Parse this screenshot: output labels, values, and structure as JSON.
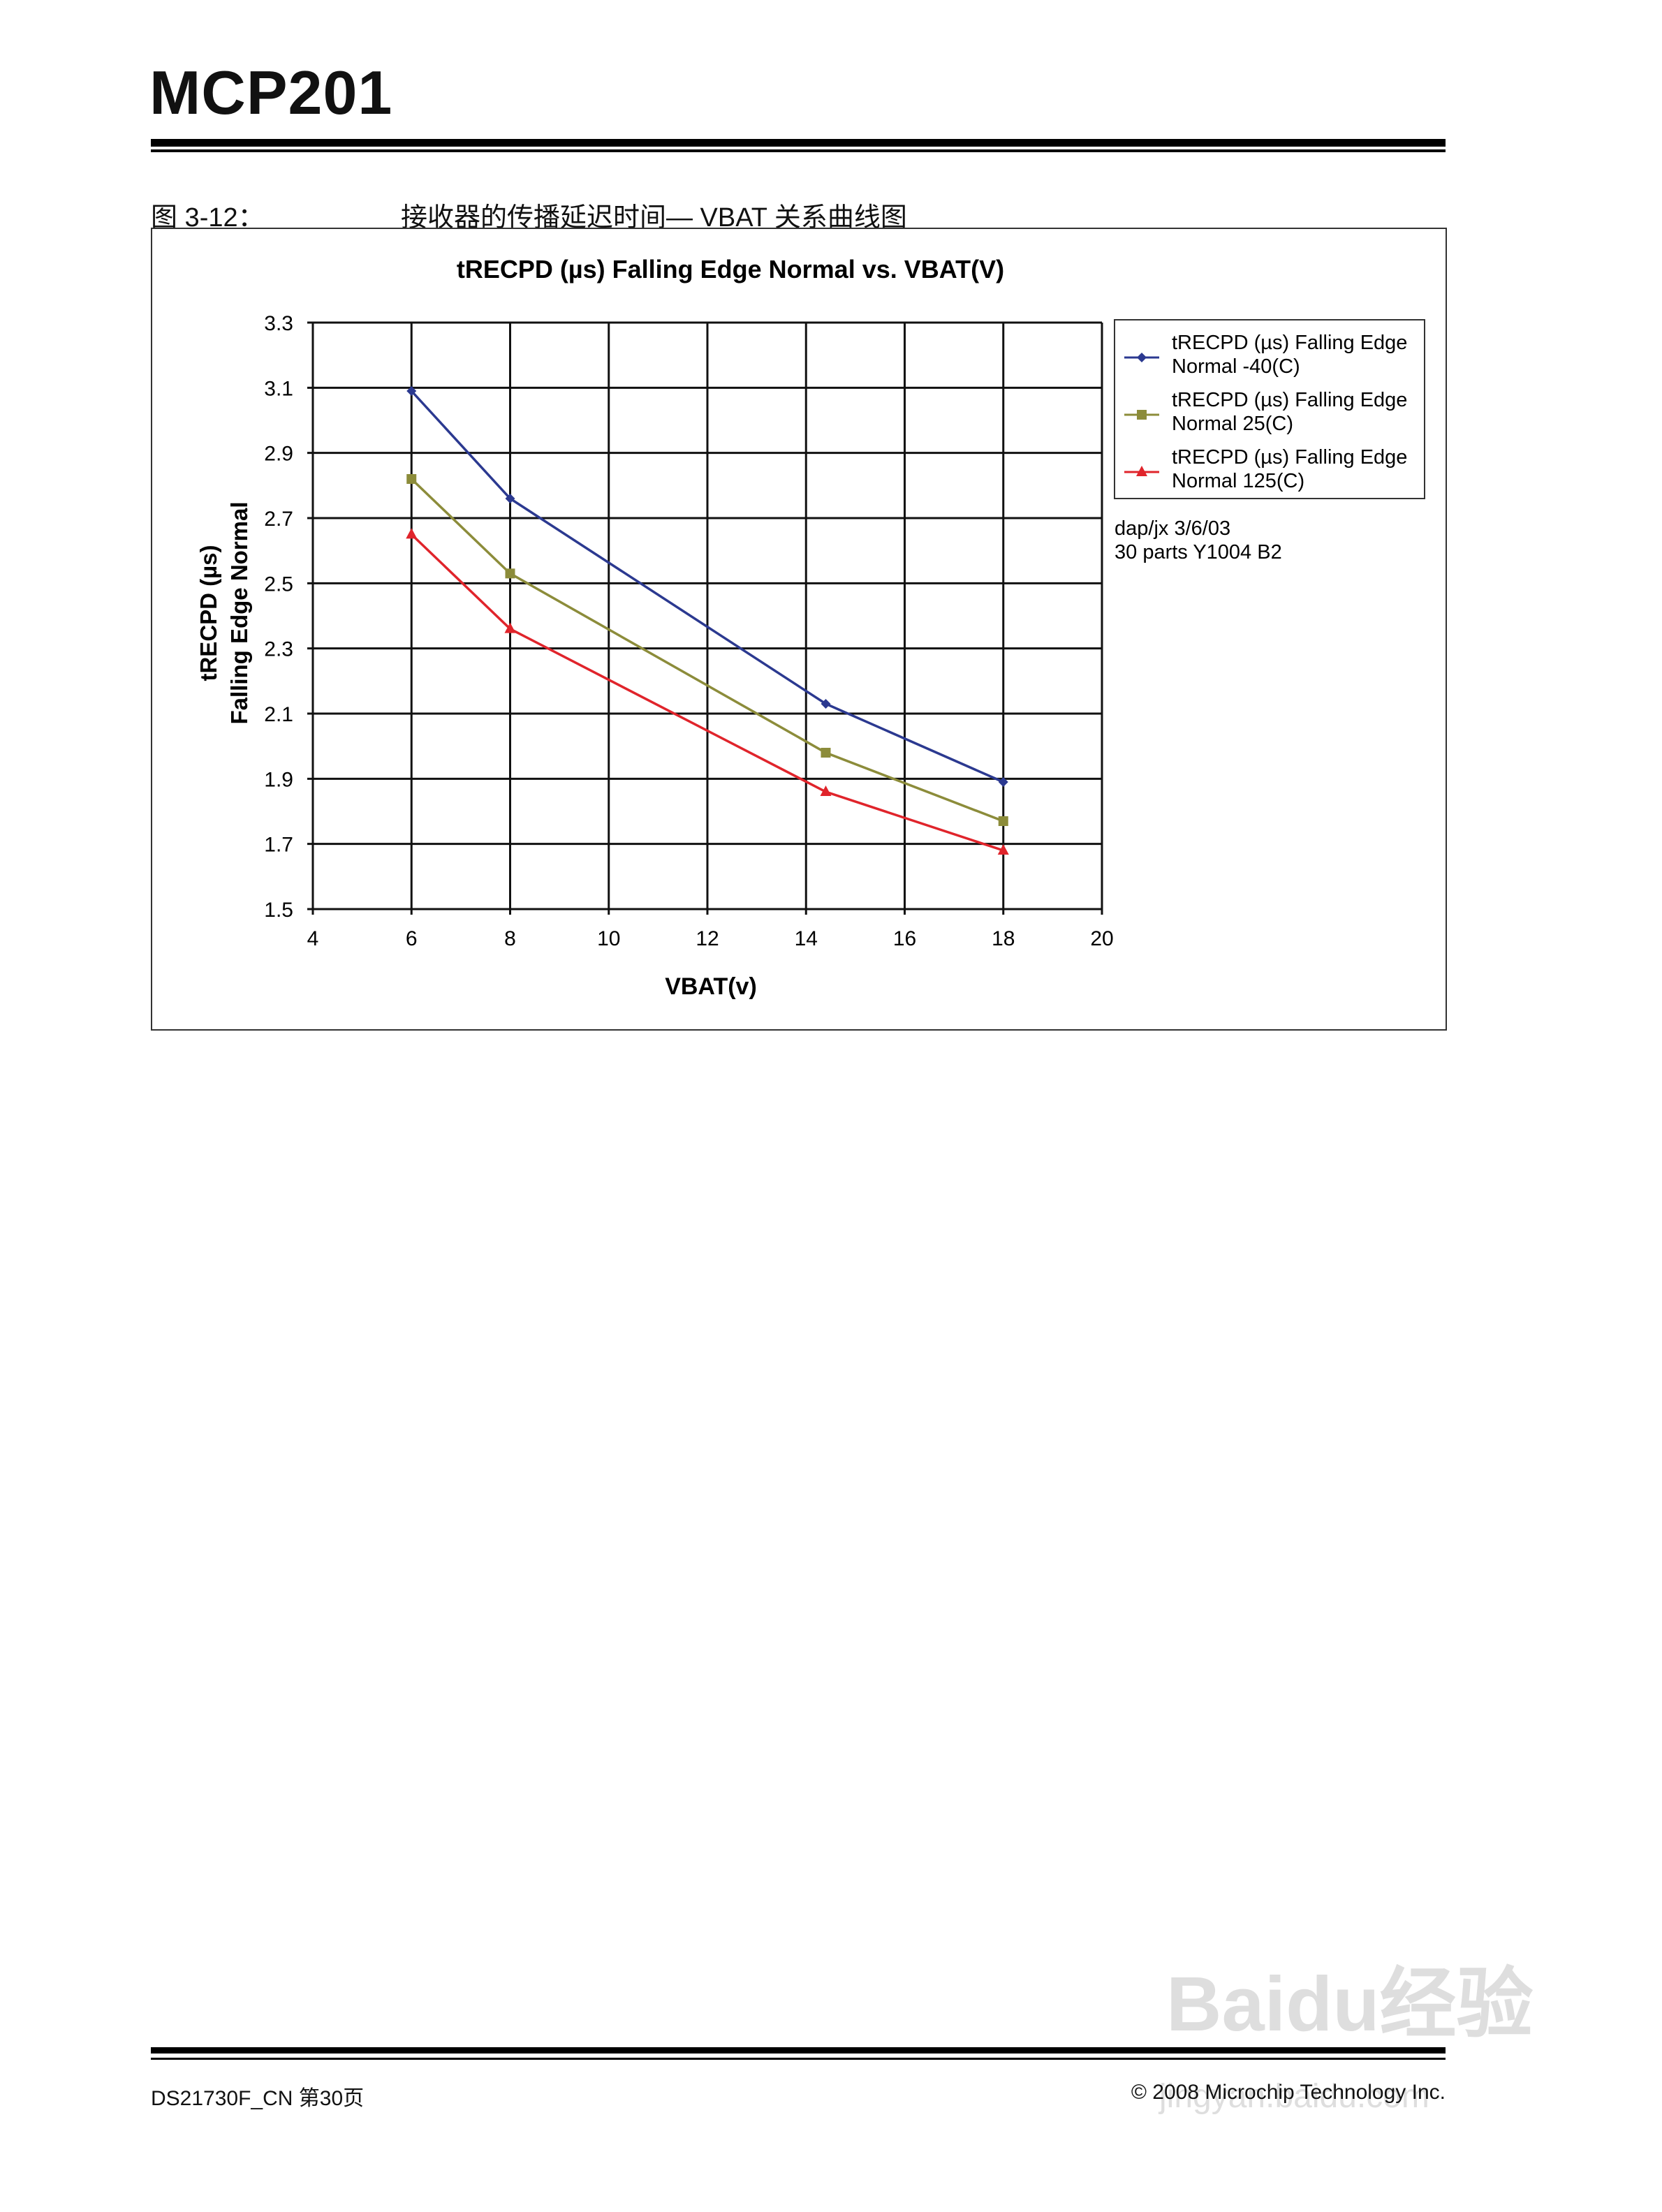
{
  "header": {
    "title": "MCP201"
  },
  "figure": {
    "number": "图 3-12：",
    "caption": "接收器的传播延迟时间— VBAT 关系曲线图"
  },
  "chart_data": {
    "type": "line",
    "title": "tRECPD (µs) Falling Edge Normal vs. VBAT(V)",
    "xlabel": "VBAT(v)",
    "ylabel": [
      "tRECPD (µs)",
      "Falling Edge Normal"
    ],
    "xlim": [
      4,
      20
    ],
    "ylim": [
      1.5,
      3.3
    ],
    "xticks": [
      "4",
      "6",
      "8",
      "10",
      "12",
      "14",
      "16",
      "18",
      "20"
    ],
    "yticks": [
      "1.5",
      "1.7",
      "1.9",
      "2.1",
      "2.3",
      "2.5",
      "2.7",
      "2.9",
      "3.1",
      "3.3"
    ],
    "grid": true,
    "legend_position": "right",
    "x": [
      6,
      8,
      14.4,
      18
    ],
    "series": [
      {
        "name": "tRECPD (µs) Falling Edge Normal -40(C)",
        "name_lines": [
          "tRECPD (µs) Falling Edge",
          "Normal -40(C)"
        ],
        "marker": "diamond",
        "color": "#2b3990",
        "values": [
          3.09,
          2.76,
          2.13,
          1.89
        ]
      },
      {
        "name": "tRECPD (µs) Falling Edge Normal 25(C)",
        "name_lines": [
          "tRECPD (µs) Falling Edge",
          "Normal 25(C)"
        ],
        "marker": "square",
        "color": "#8c8c3a",
        "values": [
          2.82,
          2.53,
          1.98,
          1.77
        ]
      },
      {
        "name": "tRECPD (µs) Falling Edge Normal 125(C)",
        "name_lines": [
          "tRECPD (µs) Falling Edge",
          "Normal 125(C)"
        ],
        "marker": "triangle",
        "color": "#e0242b",
        "values": [
          2.65,
          2.36,
          1.86,
          1.68
        ]
      }
    ],
    "annotations": [
      "dap/jx 3/6/03",
      "30 parts Y1004 B2"
    ]
  },
  "footer": {
    "left": "DS21730F_CN 第30页",
    "right": "© 2008 Microchip Technology Inc."
  },
  "watermark": {
    "logo": "Baidu经验",
    "url": "jingyan.baidu.com"
  }
}
